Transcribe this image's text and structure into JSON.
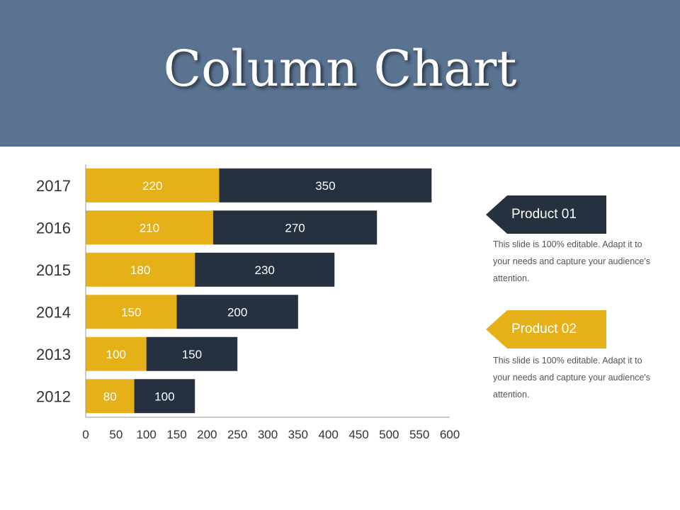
{
  "title": "Column Chart",
  "colors": {
    "header_bg": "#5a7391",
    "series_1": "#e6b018",
    "series_2": "#263140"
  },
  "products": [
    {
      "label": "Product 01",
      "color": "#263140",
      "description": "This slide is 100% editable. Adapt it to your needs and capture your audience's attention."
    },
    {
      "label": "Product 02",
      "color": "#e6b018",
      "description": "This slide is 100% editable. Adapt it to your needs and capture your audience's attention."
    }
  ],
  "chart_data": {
    "type": "bar",
    "orientation": "horizontal",
    "stacked": true,
    "categories": [
      "2017",
      "2016",
      "2015",
      "2014",
      "2013",
      "2012"
    ],
    "series": [
      {
        "values": [
          220,
          210,
          180,
          150,
          100,
          80
        ],
        "color": "#e6b018"
      },
      {
        "values": [
          350,
          270,
          230,
          200,
          150,
          100
        ],
        "color": "#263140"
      }
    ],
    "xlim": [
      0,
      600
    ],
    "xticks": [
      0,
      50,
      100,
      150,
      200,
      250,
      300,
      350,
      400,
      450,
      500,
      550,
      600
    ],
    "grid": false,
    "data_labels": true
  }
}
